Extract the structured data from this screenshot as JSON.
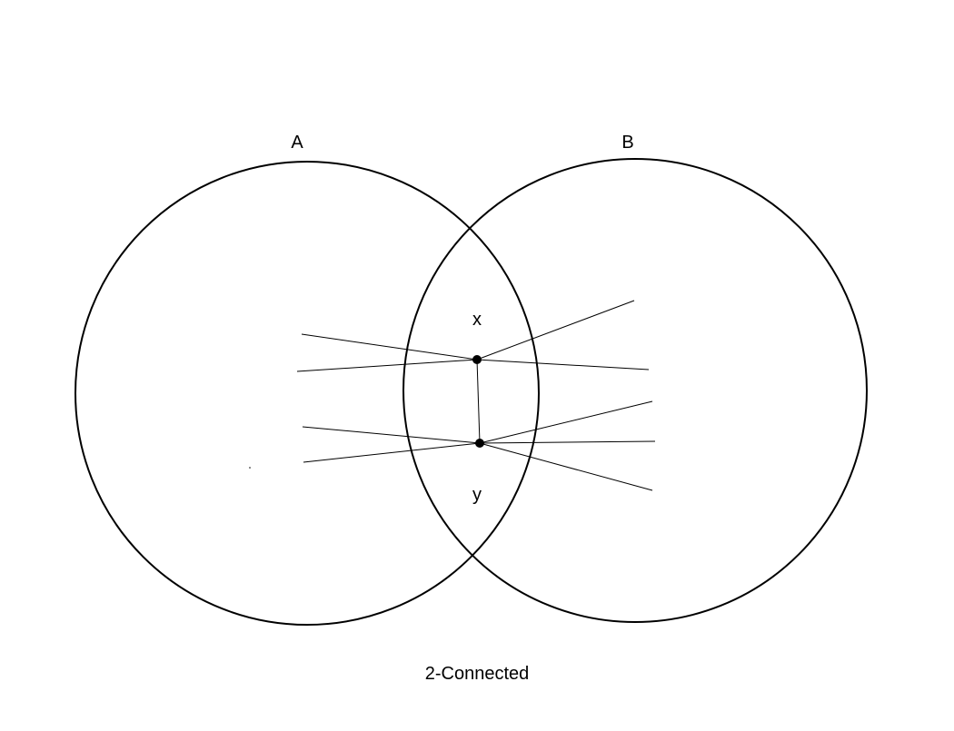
{
  "diagram": {
    "set_a_label": "A",
    "set_b_label": "B",
    "vertex_x_label": "x",
    "vertex_y_label": "y",
    "caption": "2-Connected"
  },
  "colors": {
    "stroke": "#000000",
    "background": "#ffffff"
  }
}
